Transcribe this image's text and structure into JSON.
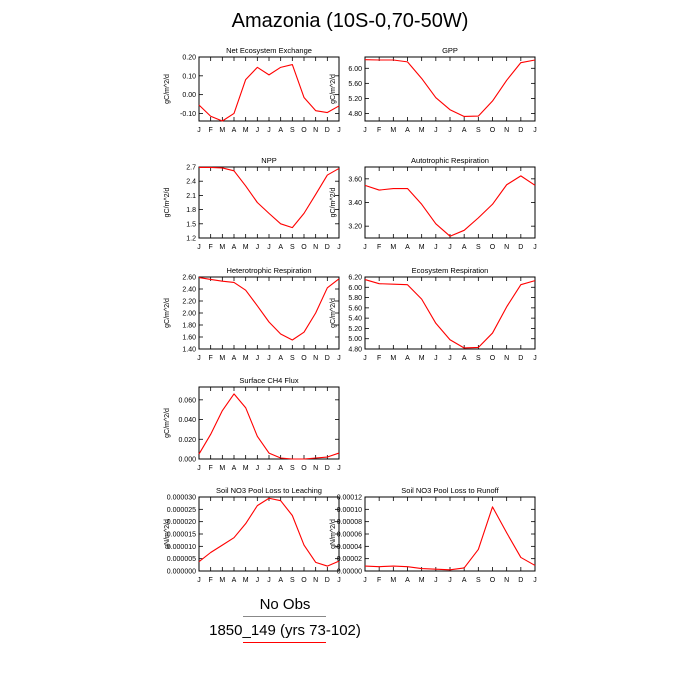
{
  "figure": {
    "title": "Amazonia (10S-0,70-50W)",
    "legend": {
      "obs_label": "No Obs",
      "run_label": "1850_149 (yrs 73-102)"
    },
    "colors": {
      "series": "#ff0000",
      "obs": "#888888"
    }
  },
  "chart_data": [
    {
      "type": "line",
      "title": "Net Ecosystem Exchange",
      "ylabel": "gC/m^2/d",
      "x": [
        "J",
        "F",
        "M",
        "A",
        "M",
        "J",
        "J",
        "A",
        "S",
        "O",
        "N",
        "D",
        "J"
      ],
      "yticks": [
        "-0.10",
        "0.00",
        "0.10",
        "0.20"
      ],
      "ylim": [
        -0.14,
        0.2
      ],
      "series": [
        {
          "values": [
            -0.055,
            -0.115,
            -0.14,
            -0.1,
            0.08,
            0.145,
            0.105,
            0.145,
            0.16,
            -0.015,
            -0.085,
            -0.095,
            -0.06
          ]
        }
      ]
    },
    {
      "type": "line",
      "title": "GPP",
      "ylabel": "gC/m^2/d",
      "x": [
        "J",
        "F",
        "M",
        "A",
        "M",
        "J",
        "J",
        "A",
        "S",
        "O",
        "N",
        "D",
        "J"
      ],
      "yticks": [
        "4.80",
        "5.20",
        "5.60",
        "6.00"
      ],
      "ylim": [
        4.6,
        6.3
      ],
      "series": [
        {
          "values": [
            6.23,
            6.22,
            6.22,
            6.17,
            5.73,
            5.22,
            4.9,
            4.72,
            4.73,
            5.13,
            5.68,
            6.15,
            6.22
          ]
        }
      ]
    },
    {
      "type": "line",
      "title": "NPP",
      "ylabel": "gC/m^2/d",
      "x": [
        "J",
        "F",
        "M",
        "A",
        "M",
        "J",
        "J",
        "A",
        "S",
        "O",
        "N",
        "D",
        "J"
      ],
      "yticks": [
        "1.2",
        "1.5",
        "1.8",
        "2.1",
        "2.4",
        "2.7"
      ],
      "ylim": [
        1.2,
        2.7
      ],
      "series": [
        {
          "values": [
            2.69,
            2.69,
            2.68,
            2.62,
            2.3,
            1.95,
            1.72,
            1.5,
            1.42,
            1.72,
            2.12,
            2.53,
            2.67
          ]
        }
      ]
    },
    {
      "type": "line",
      "title": "Autotrophic Respiration",
      "ylabel": "gC/m^2/d",
      "x": [
        "J",
        "F",
        "M",
        "A",
        "M",
        "J",
        "J",
        "A",
        "S",
        "O",
        "N",
        "D",
        "J"
      ],
      "yticks": [
        "3.20",
        "3.40",
        "3.60"
      ],
      "ylim": [
        3.1,
        3.7
      ],
      "series": [
        {
          "values": [
            3.545,
            3.505,
            3.518,
            3.518,
            3.385,
            3.22,
            3.115,
            3.165,
            3.27,
            3.385,
            3.55,
            3.625,
            3.545
          ]
        }
      ]
    },
    {
      "type": "line",
      "title": "Heterotrophic Respiration",
      "ylabel": "gC/m^2/d",
      "x": [
        "J",
        "F",
        "M",
        "A",
        "M",
        "J",
        "J",
        "A",
        "S",
        "O",
        "N",
        "D",
        "J"
      ],
      "yticks": [
        "1.40",
        "1.60",
        "1.80",
        "2.00",
        "2.20",
        "2.40",
        "2.60"
      ],
      "ylim": [
        1.4,
        2.6
      ],
      "series": [
        {
          "values": [
            2.59,
            2.56,
            2.53,
            2.51,
            2.38,
            2.12,
            1.85,
            1.65,
            1.55,
            1.68,
            2.0,
            2.42,
            2.57
          ]
        }
      ]
    },
    {
      "type": "line",
      "title": "Ecosystem Respiration",
      "ylabel": "gC/m^2/d",
      "x": [
        "J",
        "F",
        "M",
        "A",
        "M",
        "J",
        "J",
        "A",
        "S",
        "O",
        "N",
        "D",
        "J"
      ],
      "yticks": [
        "4.80",
        "5.00",
        "5.20",
        "5.40",
        "5.60",
        "5.80",
        "6.00",
        "6.20"
      ],
      "ylim": [
        4.8,
        6.2
      ],
      "series": [
        {
          "values": [
            6.15,
            6.07,
            6.06,
            6.05,
            5.77,
            5.3,
            4.98,
            4.82,
            4.83,
            5.11,
            5.62,
            6.05,
            6.13
          ]
        }
      ]
    },
    {
      "type": "line",
      "title": "Surface CH4 Flux",
      "ylabel": "gC/m^2/d",
      "x": [
        "J",
        "F",
        "M",
        "A",
        "M",
        "J",
        "J",
        "A",
        "S",
        "O",
        "N",
        "D",
        "J"
      ],
      "yticks": [
        "0.000",
        "0.020",
        "0.040",
        "0.060"
      ],
      "ylim": [
        0.0,
        0.073
      ],
      "series": [
        {
          "values": [
            0.005,
            0.025,
            0.049,
            0.066,
            0.052,
            0.023,
            0.006,
            0.001,
            0.0,
            0.0,
            0.001,
            0.002,
            0.006
          ]
        }
      ]
    },
    {
      "type": "line",
      "title": "Soil NO3 Pool Loss to Leaching",
      "ylabel": "gN/m^2/d",
      "x": [
        "J",
        "F",
        "M",
        "A",
        "M",
        "J",
        "J",
        "A",
        "S",
        "O",
        "N",
        "D",
        "J"
      ],
      "yticks": [
        "0.000000",
        "0.000005",
        "0.000010",
        "0.000015",
        "0.000020",
        "0.000025",
        "0.000030"
      ],
      "ylim": [
        0.0,
        3e-05
      ],
      "series": [
        {
          "values": [
            3.8e-06,
            7.5e-06,
            1.05e-05,
            1.35e-05,
            1.92e-05,
            2.65e-05,
            2.95e-05,
            2.85e-05,
            2.25e-05,
            1.05e-05,
            3.5e-06,
            2e-06,
            4e-06
          ]
        }
      ]
    },
    {
      "type": "line",
      "title": "Soil NO3 Pool Loss to Runoff",
      "ylabel": "gN/m^2/d",
      "x": [
        "J",
        "F",
        "M",
        "A",
        "M",
        "J",
        "J",
        "A",
        "S",
        "O",
        "N",
        "D",
        "J"
      ],
      "yticks": [
        "0.00000",
        "0.00002",
        "0.00004",
        "0.00006",
        "0.00008",
        "0.00010",
        "0.00012"
      ],
      "ylim": [
        0.0,
        0.00012
      ],
      "series": [
        {
          "values": [
            8e-06,
            7e-06,
            8e-06,
            7e-06,
            4e-06,
            3e-06,
            2e-06,
            5e-06,
            3.5e-05,
            0.000104,
            6.2e-05,
            2.2e-05,
            9e-06
          ]
        }
      ]
    }
  ]
}
